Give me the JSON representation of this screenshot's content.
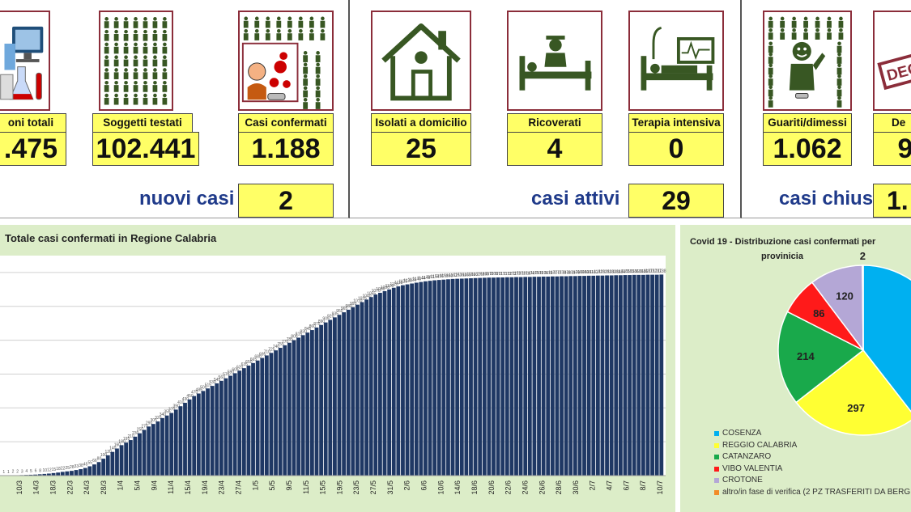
{
  "stats": [
    {
      "label": "oni totali",
      "value": ".475"
    },
    {
      "label": "Soggetti testati",
      "value": "102.441"
    },
    {
      "label": "Casi confermati",
      "value": "1.188"
    },
    {
      "label": "Isolati a domicilio",
      "value": "25"
    },
    {
      "label": "Ricoverati",
      "value": "4"
    },
    {
      "label": "Terapia intensiva",
      "value": "0"
    },
    {
      "label": "Guariti/dimessi",
      "value": "1.062"
    },
    {
      "label": "De",
      "value": "9"
    }
  ],
  "summary": {
    "nuovi_label": "nuovi casi",
    "nuovi_value": "2",
    "attivi_label": "casi attivi",
    "attivi_value": "29",
    "chiusi_label": "casi chiusi",
    "chiusi_value": "1."
  },
  "icons": {
    "lab": "lab-equipment-icon",
    "people": "people-grid-icon",
    "virus": "virus-person-icon",
    "house": "house-icon",
    "hospital": "hospital-bed-icon",
    "icu": "icu-bed-icon",
    "recovered": "recovered-person-icon",
    "deceased": "deceased-stamp-icon",
    "deceased_text": "DEC"
  },
  "colors": {
    "value_box": "#ffff66",
    "title_blue": "#1f3a8a",
    "bar": "#1f3864",
    "panel_bg": "#dcedc8"
  },
  "chart_data": [
    {
      "type": "bar",
      "title": "Totale casi confermati in Regione Calabria",
      "xlabel": "",
      "ylabel": "",
      "tick_labels": [
        "",
        "10/3",
        "14/3",
        "18/3",
        "22/3",
        "24/3",
        "28/3",
        "1/4",
        "5/4",
        "9/4",
        "11/4",
        "15/4",
        "19/4",
        "23/4",
        "27/4",
        "1/5",
        "5/5",
        "9/5",
        "11/5",
        "15/5",
        "19/5",
        "23/5",
        "27/5",
        "31/5",
        "2/6",
        "6/6",
        "10/6",
        "14/6",
        "18/6",
        "20/6",
        "22/6",
        "24/6",
        "26/6",
        "28/6",
        "30/6",
        "2/7",
        "4/7",
        "6/7",
        "8/7",
        "10/7"
      ],
      "values": [
        1,
        1,
        2,
        2,
        3,
        4,
        5,
        6,
        8,
        10,
        12,
        15,
        18,
        22,
        25,
        28,
        33,
        38,
        45,
        55,
        66,
        80,
        100,
        120,
        140,
        160,
        180,
        195,
        210,
        230,
        250,
        270,
        290,
        305,
        320,
        340,
        355,
        370,
        390,
        410,
        430,
        450,
        470,
        485,
        500,
        515,
        530,
        545,
        560,
        575,
        590,
        605,
        620,
        635,
        650,
        665,
        680,
        695,
        710,
        725,
        740,
        755,
        770,
        785,
        800,
        815,
        830,
        845,
        860,
        875,
        890,
        905,
        920,
        935,
        950,
        965,
        980,
        995,
        1010,
        1025,
        1040,
        1055,
        1070,
        1080,
        1090,
        1100,
        1110,
        1118,
        1125,
        1130,
        1135,
        1140,
        1144,
        1148,
        1151,
        1154,
        1156,
        1158,
        1160,
        1162,
        1163,
        1164,
        1165,
        1166,
        1167,
        1168,
        1169,
        1170,
        1170,
        1171,
        1171,
        1172,
        1172,
        1173,
        1173,
        1174,
        1174,
        1175,
        1175,
        1176,
        1176,
        1177,
        1177,
        1178,
        1178,
        1179,
        1179,
        1180,
        1180,
        1181,
        1181,
        1182,
        1182,
        1183,
        1183,
        1184,
        1184,
        1185,
        1185,
        1186,
        1186,
        1186,
        1187,
        1187,
        1187,
        1188
      ],
      "ylim": [
        0,
        1300
      ],
      "grid": true
    },
    {
      "type": "pie",
      "title": "Covid 19 - Distribuzione casi confermati per provinicia",
      "labels": [
        "COSENZA",
        "REGGIO CALABRIA",
        "CATANZARO",
        "VIBO VALENTIA",
        "CROTONE",
        "altro/in fase di verifica (2 PZ TRASFERITI DA BERG"
      ],
      "values": [
        469,
        297,
        214,
        86,
        120,
        2
      ],
      "value_labels": [
        "",
        "297",
        "214",
        "86",
        "120",
        "2"
      ],
      "colors": [
        "#00b0f0",
        "#ffff33",
        "#19a94b",
        "#ff1a1a",
        "#b4a7d6",
        "#f28c28"
      ],
      "legend": "bottom"
    }
  ]
}
